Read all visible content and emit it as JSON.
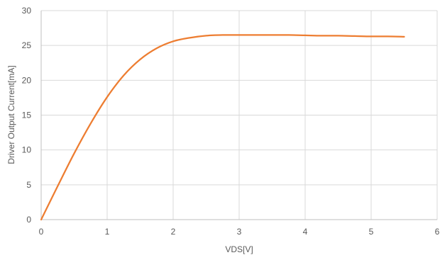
{
  "chart_data": {
    "type": "line",
    "title": "",
    "xlabel": "VDS[V]",
    "ylabel": "Driver Output Current[mA]",
    "xlim": [
      0,
      6
    ],
    "ylim": [
      0,
      30
    ],
    "x_ticks": [
      0,
      1,
      2,
      3,
      4,
      5,
      6
    ],
    "y_ticks": [
      0,
      5,
      10,
      15,
      20,
      25,
      30
    ],
    "grid": true,
    "legend": "none",
    "series": [
      {
        "color": "#ED7D31",
        "x": [
          0,
          0.25,
          0.5,
          0.75,
          1.0,
          1.25,
          1.5,
          1.75,
          2.0,
          2.25,
          2.5,
          2.75,
          3.0,
          3.25,
          3.5,
          3.75,
          4.0,
          4.25,
          4.5,
          4.75,
          5.0,
          5.25,
          5.5
        ],
        "y": [
          0,
          4.8,
          9.5,
          13.8,
          17.6,
          20.7,
          23.0,
          24.6,
          25.6,
          26.1,
          26.4,
          26.5,
          26.5,
          26.5,
          26.5,
          26.5,
          26.45,
          26.4,
          26.4,
          26.35,
          26.3,
          26.3,
          26.25
        ]
      }
    ]
  }
}
